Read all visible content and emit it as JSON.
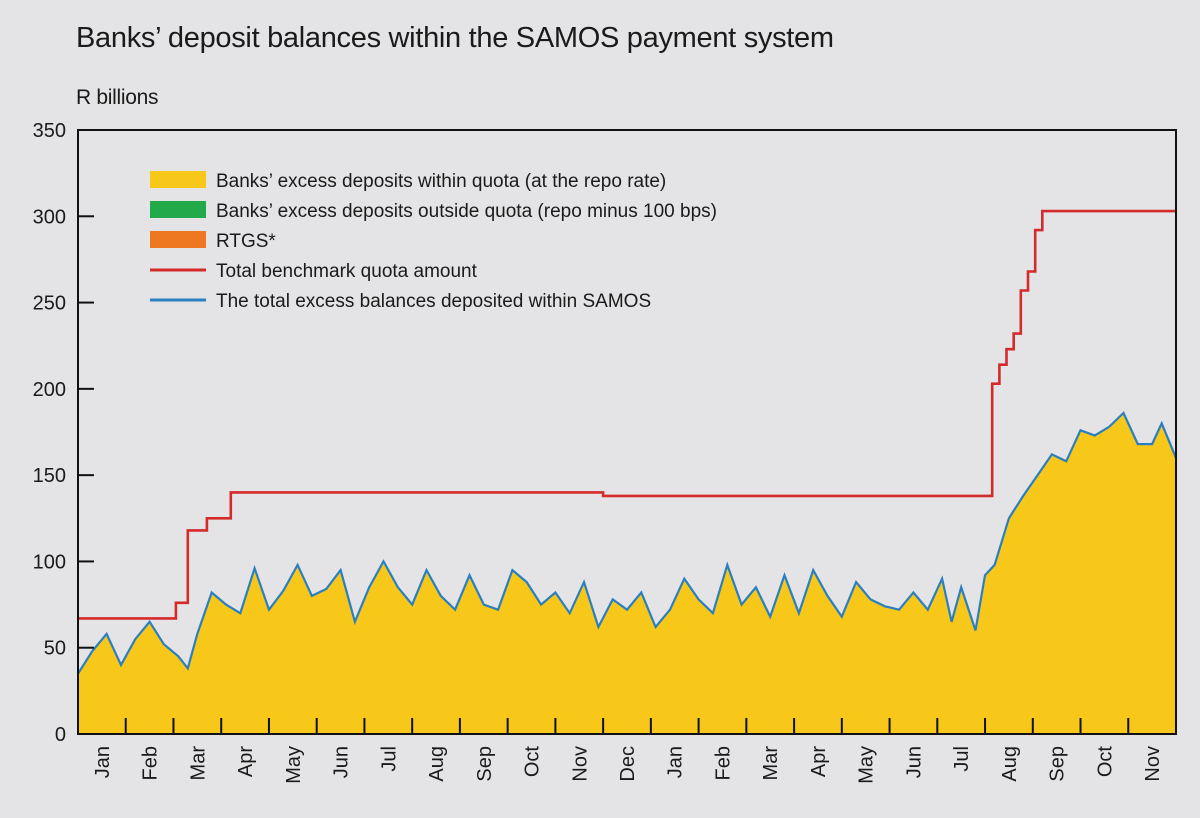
{
  "colors": {
    "within_quota": "#f7c81a",
    "outside_quota": "#22aa4a",
    "rtgs": "#ee7722",
    "benchmark": "#d42a2a",
    "total_excess": "#2a7fc0",
    "axis": "#111111",
    "plot_bg": "#e4e4e6"
  },
  "chart_data": {
    "type": "area",
    "title": "Banks’ deposit balances within the SAMOS payment system",
    "ylabel": "R billions",
    "xlabel": "",
    "ylim": [
      0,
      350
    ],
    "yticks": [
      0,
      50,
      100,
      150,
      200,
      250,
      300,
      350
    ],
    "x_tick_labels": [
      "Jan",
      "Feb",
      "Mar",
      "Apr",
      "May",
      "Jun",
      "Jul",
      "Aug",
      "Sep",
      "Oct",
      "Nov",
      "Dec",
      "Jan",
      "Feb",
      "Mar",
      "Apr",
      "May",
      "Jun",
      "Jul",
      "Aug",
      "Sep",
      "Oct",
      "Nov"
    ],
    "x_unit": "month index (0 = first Jan, 23 = end of last Nov)",
    "xlim": [
      0,
      23
    ],
    "grid": false,
    "legend_position": "top-left",
    "legend": [
      {
        "label": "Banks’ excess deposits within quota (at the repo rate)",
        "kind": "area",
        "color_key": "within_quota"
      },
      {
        "label": "Banks’ excess deposits outside quota (repo minus 100 bps)",
        "kind": "area",
        "color_key": "outside_quota"
      },
      {
        "label": "RTGS*",
        "kind": "area",
        "color_key": "rtgs"
      },
      {
        "label": "Total benchmark quota amount",
        "kind": "line",
        "color_key": "benchmark"
      },
      {
        "label": "The total excess balances deposited within SAMOS",
        "kind": "line",
        "color_key": "total_excess"
      }
    ],
    "series": [
      {
        "name": "Total benchmark quota amount",
        "kind": "step",
        "points": [
          [
            0,
            67
          ],
          [
            2.05,
            67
          ],
          [
            2.05,
            76
          ],
          [
            2.3,
            76
          ],
          [
            2.3,
            118
          ],
          [
            2.7,
            118
          ],
          [
            2.7,
            125
          ],
          [
            3.2,
            125
          ],
          [
            3.2,
            140
          ],
          [
            11,
            140
          ],
          [
            11,
            138
          ],
          [
            19.15,
            138
          ],
          [
            19.15,
            203
          ],
          [
            19.3,
            203
          ],
          [
            19.3,
            214
          ],
          [
            19.45,
            214
          ],
          [
            19.45,
            223
          ],
          [
            19.6,
            223
          ],
          [
            19.6,
            232
          ],
          [
            19.75,
            232
          ],
          [
            19.75,
            257
          ],
          [
            19.9,
            257
          ],
          [
            19.9,
            268
          ],
          [
            20.05,
            268
          ],
          [
            20.05,
            292
          ],
          [
            20.2,
            292
          ],
          [
            20.2,
            303
          ],
          [
            23,
            303
          ]
        ]
      },
      {
        "name": "The total excess balances deposited within SAMOS",
        "kind": "line",
        "points": [
          [
            0,
            35
          ],
          [
            0.3,
            48
          ],
          [
            0.6,
            58
          ],
          [
            0.9,
            40
          ],
          [
            1.2,
            55
          ],
          [
            1.5,
            65
          ],
          [
            1.8,
            52
          ],
          [
            2.1,
            45
          ],
          [
            2.3,
            38
          ],
          [
            2.5,
            58
          ],
          [
            2.8,
            82
          ],
          [
            3.1,
            75
          ],
          [
            3.4,
            70
          ],
          [
            3.7,
            96
          ],
          [
            4.0,
            72
          ],
          [
            4.3,
            83
          ],
          [
            4.6,
            98
          ],
          [
            4.9,
            80
          ],
          [
            5.2,
            84
          ],
          [
            5.5,
            95
          ],
          [
            5.8,
            65
          ],
          [
            6.1,
            85
          ],
          [
            6.4,
            100
          ],
          [
            6.7,
            85
          ],
          [
            7.0,
            75
          ],
          [
            7.3,
            95
          ],
          [
            7.6,
            80
          ],
          [
            7.9,
            72
          ],
          [
            8.2,
            92
          ],
          [
            8.5,
            75
          ],
          [
            8.8,
            72
          ],
          [
            9.1,
            95
          ],
          [
            9.4,
            88
          ],
          [
            9.7,
            75
          ],
          [
            10.0,
            82
          ],
          [
            10.3,
            70
          ],
          [
            10.6,
            88
          ],
          [
            10.9,
            62
          ],
          [
            11.2,
            78
          ],
          [
            11.5,
            72
          ],
          [
            11.8,
            82
          ],
          [
            12.1,
            62
          ],
          [
            12.4,
            72
          ],
          [
            12.7,
            90
          ],
          [
            13.0,
            78
          ],
          [
            13.3,
            70
          ],
          [
            13.6,
            98
          ],
          [
            13.9,
            75
          ],
          [
            14.2,
            85
          ],
          [
            14.5,
            68
          ],
          [
            14.8,
            92
          ],
          [
            15.1,
            70
          ],
          [
            15.4,
            95
          ],
          [
            15.7,
            80
          ],
          [
            16.0,
            68
          ],
          [
            16.3,
            88
          ],
          [
            16.6,
            78
          ],
          [
            16.9,
            74
          ],
          [
            17.2,
            72
          ],
          [
            17.5,
            82
          ],
          [
            17.8,
            72
          ],
          [
            18.1,
            90
          ],
          [
            18.3,
            65
          ],
          [
            18.5,
            85
          ],
          [
            18.8,
            60
          ],
          [
            19.0,
            92
          ],
          [
            19.2,
            98
          ],
          [
            19.5,
            125
          ],
          [
            19.8,
            138
          ],
          [
            20.1,
            150
          ],
          [
            20.4,
            162
          ],
          [
            20.7,
            158
          ],
          [
            21.0,
            176
          ],
          [
            21.3,
            173
          ],
          [
            21.6,
            178
          ],
          [
            21.9,
            186
          ],
          [
            22.2,
            168
          ],
          [
            22.5,
            168
          ],
          [
            22.7,
            180
          ],
          [
            23.0,
            160
          ]
        ]
      },
      {
        "name": "Banks’ excess deposits within quota (at the repo rate)",
        "kind": "area",
        "same_as": "The total excess balances deposited within SAMOS",
        "note_value_range": "fills the area beneath the total excess balances line"
      }
    ]
  }
}
